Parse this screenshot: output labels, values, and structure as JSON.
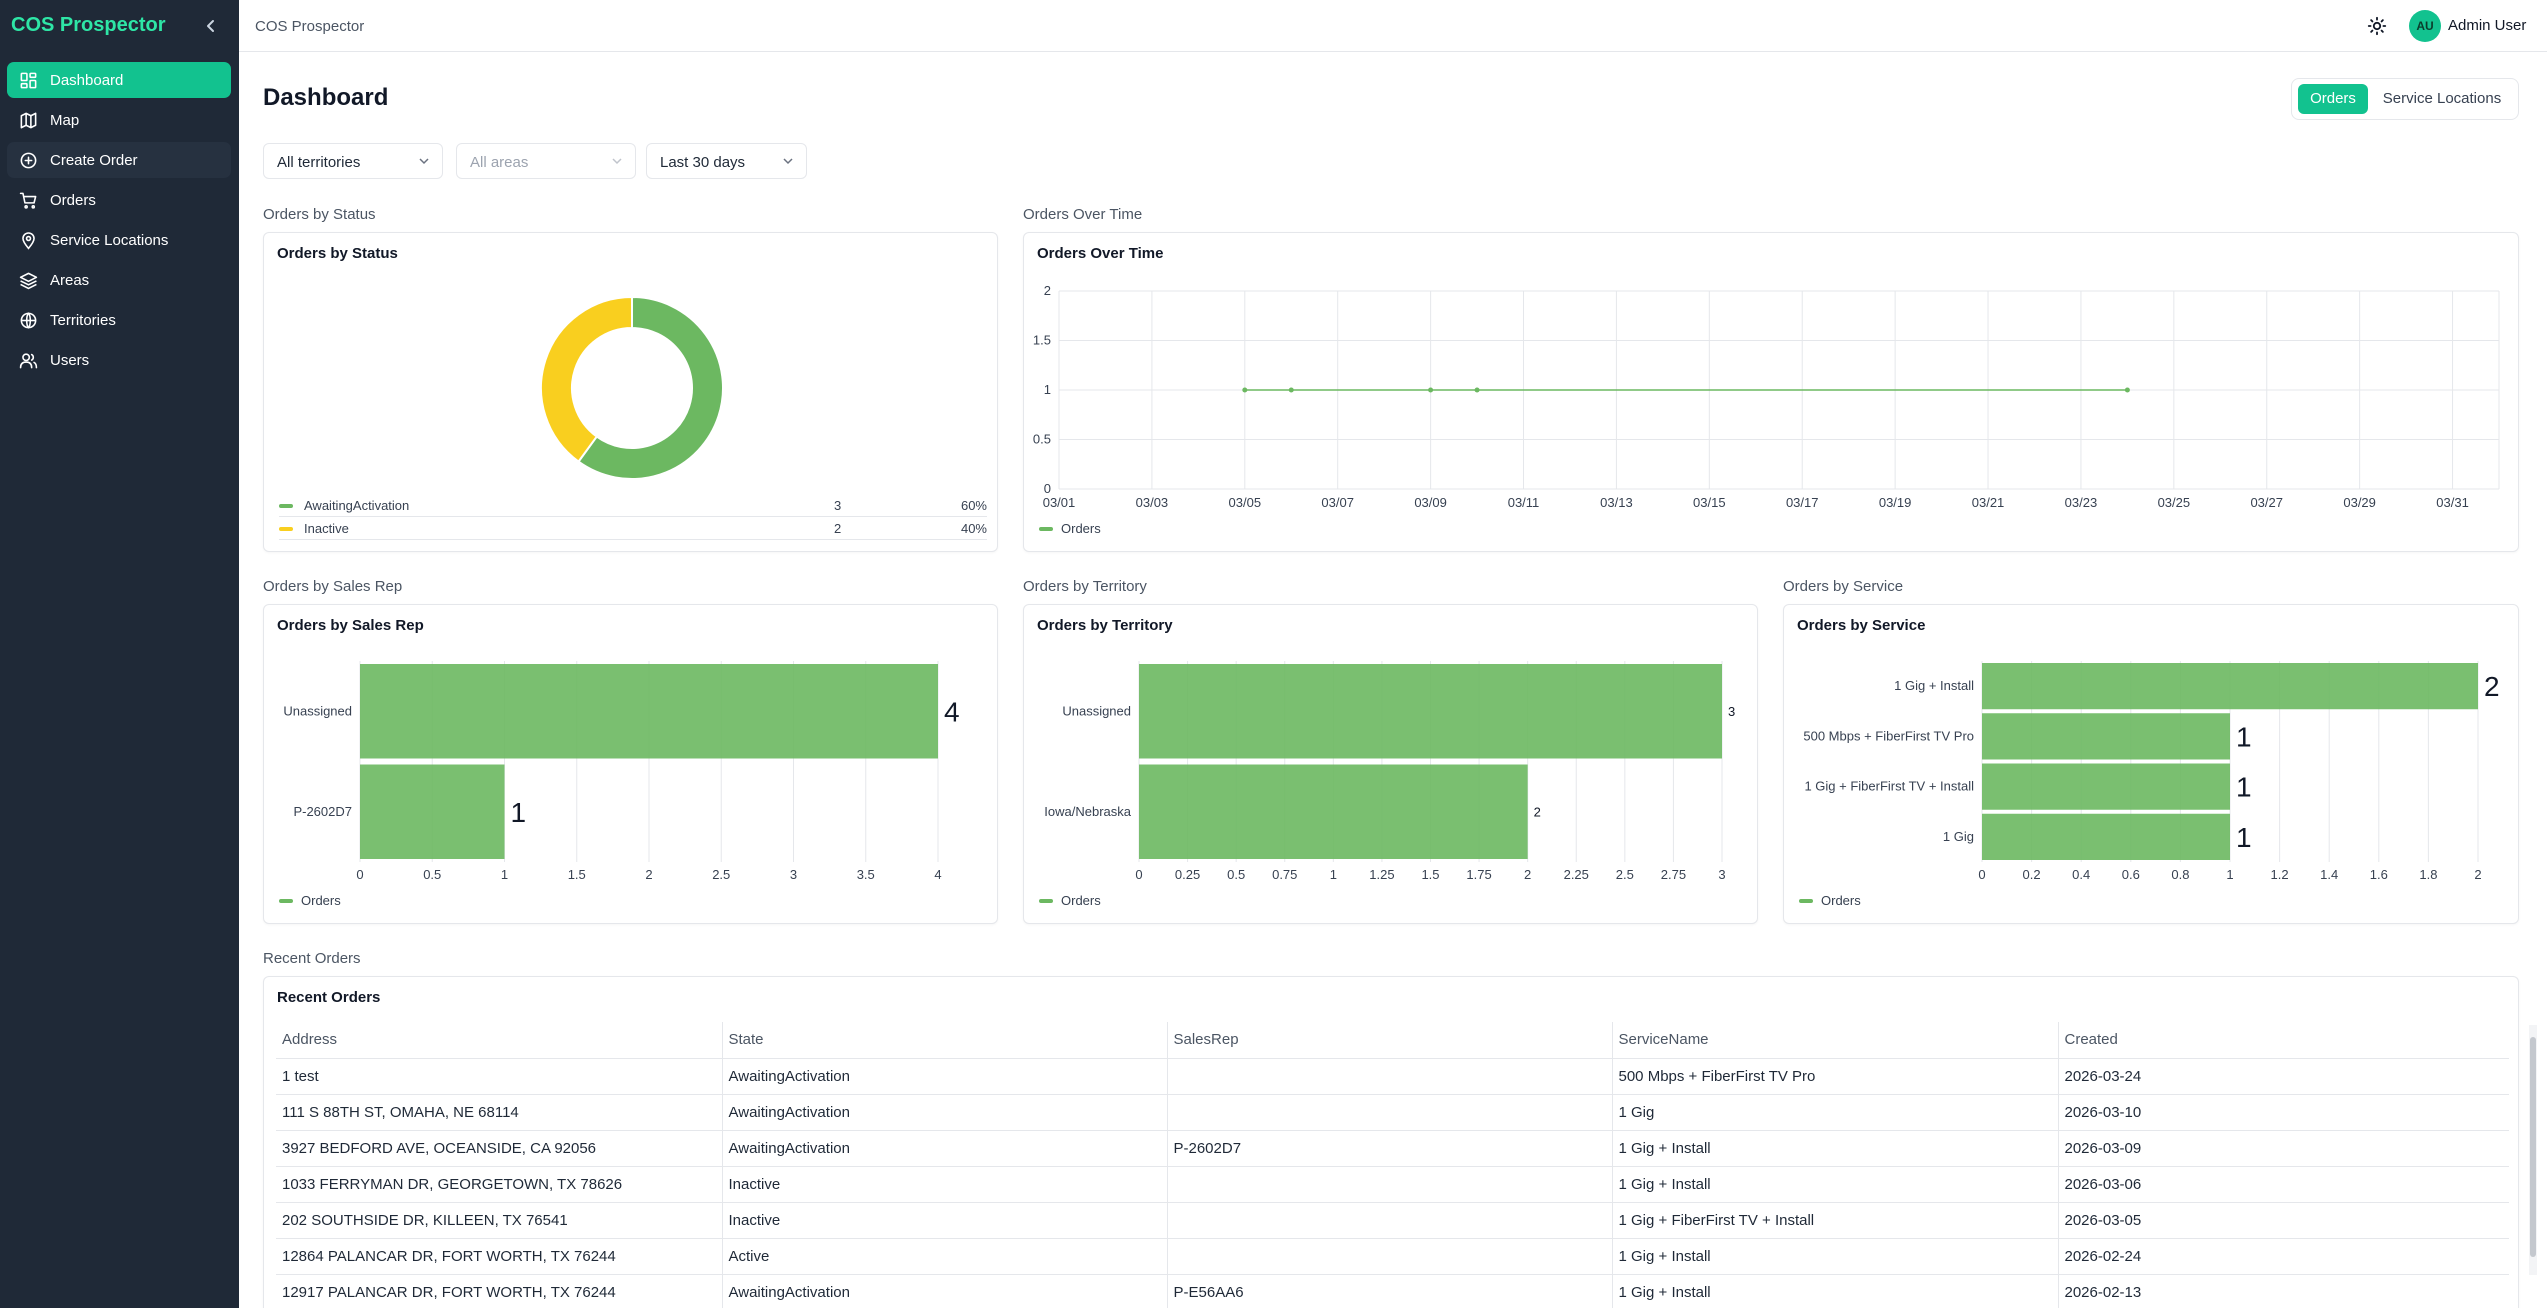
{
  "app": {
    "brand": "COS Prospector",
    "breadcrumb": "COS Prospector"
  },
  "colors": {
    "accent": "#12c28f",
    "sidebar_bg": "#1f2937",
    "green_series": "#6cb861",
    "yellow_series": "#f9cf1f"
  },
  "sidebar": {
    "items": [
      {
        "label": "Dashboard",
        "icon": "dashboard-icon",
        "active": true
      },
      {
        "label": "Map",
        "icon": "map-icon"
      },
      {
        "label": "Create Order",
        "icon": "plus-circle-icon"
      },
      {
        "label": "Orders",
        "icon": "cart-icon"
      },
      {
        "label": "Service Locations",
        "icon": "location-pin-icon"
      },
      {
        "label": "Areas",
        "icon": "layers-icon"
      },
      {
        "label": "Territories",
        "icon": "globe-icon"
      },
      {
        "label": "Users",
        "icon": "users-icon"
      }
    ]
  },
  "header": {
    "user_initials": "AU",
    "user_name": "Admin User",
    "theme_icon": "sun-icon"
  },
  "main": {
    "title": "Dashboard",
    "view_toggle": {
      "orders": "Orders",
      "service_locations": "Service Locations",
      "selected": "Orders"
    },
    "filters": {
      "territory": "All territories",
      "area": "All areas",
      "range": "Last 30 days"
    }
  },
  "sections": {
    "status": "Orders by Status",
    "over_time": "Orders Over Time",
    "sales_rep": "Orders by Sales Rep",
    "territory": "Orders by Territory",
    "service": "Orders by Service",
    "recent": "Recent Orders"
  },
  "chart_data": [
    {
      "id": "status",
      "type": "pie",
      "title": "Orders by Status",
      "slices": [
        {
          "label": "AwaitingActivation",
          "value": 3,
          "percent": "60%",
          "color": "#6cb861"
        },
        {
          "label": "Inactive",
          "value": 2,
          "percent": "40%",
          "color": "#f9cf1f"
        }
      ]
    },
    {
      "id": "over_time",
      "type": "line",
      "title": "Orders Over Time",
      "x_ticks": [
        "03/01",
        "03/03",
        "03/05",
        "03/07",
        "03/09",
        "03/11",
        "03/13",
        "03/15",
        "03/17",
        "03/19",
        "03/21",
        "03/23",
        "03/25",
        "03/27",
        "03/29",
        "03/31"
      ],
      "y_ticks": [
        "0",
        "0.5",
        "1",
        "1.5",
        "2"
      ],
      "ylim": [
        0,
        2
      ],
      "series": [
        {
          "name": "Orders",
          "x": [
            "03/05",
            "03/06",
            "03/09",
            "03/10",
            "03/24"
          ],
          "values": [
            1,
            1,
            1,
            1,
            1
          ]
        }
      ]
    },
    {
      "id": "sales_rep",
      "type": "bar",
      "title": "Orders by Sales Rep",
      "categories": [
        "Unassigned",
        "P-2602D7"
      ],
      "values": [
        4,
        1
      ],
      "value_labels": [
        "4",
        "1"
      ],
      "x_ticks": [
        "0",
        "0.5",
        "1",
        "1.5",
        "2",
        "2.5",
        "3",
        "3.5",
        "4"
      ],
      "xlim": [
        0,
        4
      ],
      "series_name": "Orders"
    },
    {
      "id": "territory",
      "type": "bar",
      "title": "Orders by Territory",
      "categories": [
        "Unassigned",
        "Iowa/Nebraska"
      ],
      "values": [
        3,
        2
      ],
      "value_labels": [
        "3",
        "2"
      ],
      "x_ticks": [
        "0",
        "0.25",
        "0.5",
        "0.75",
        "1",
        "1.25",
        "1.5",
        "1.75",
        "2",
        "2.25",
        "2.5",
        "2.75",
        "3"
      ],
      "xlim": [
        0,
        3
      ],
      "series_name": "Orders"
    },
    {
      "id": "service",
      "type": "bar",
      "title": "Orders by Service",
      "categories": [
        "1 Gig + Install",
        "500 Mbps + FiberFirst TV Pro",
        "1 Gig + FiberFirst TV +  Install",
        "1 Gig"
      ],
      "values": [
        2,
        1,
        1,
        1
      ],
      "value_labels": [
        "2",
        "1",
        "1",
        "1"
      ],
      "x_ticks": [
        "0",
        "0.2",
        "0.4",
        "0.6",
        "0.8",
        "1",
        "1.2",
        "1.4",
        "1.6",
        "1.8",
        "2"
      ],
      "xlim": [
        0,
        2
      ],
      "series_name": "Orders"
    }
  ],
  "recent_orders": {
    "title": "Recent Orders",
    "columns": [
      "Address",
      "State",
      "SalesRep",
      "ServiceName",
      "Created"
    ],
    "rows": [
      [
        "1 test",
        "AwaitingActivation",
        "",
        "500 Mbps + FiberFirst TV Pro",
        "2026-03-24"
      ],
      [
        "111 S 88TH ST, OMAHA, NE 68114",
        "AwaitingActivation",
        "",
        "1 Gig",
        "2026-03-10"
      ],
      [
        "3927 BEDFORD AVE, OCEANSIDE, CA 92056",
        "AwaitingActivation",
        "P-2602D7",
        "1 Gig + Install",
        "2026-03-09"
      ],
      [
        "1033 FERRYMAN DR, GEORGETOWN, TX 78626",
        "Inactive",
        "",
        "1 Gig + Install",
        "2026-03-06"
      ],
      [
        "202 SOUTHSIDE DR, KILLEEN, TX 76541",
        "Inactive",
        "",
        "1 Gig + FiberFirst TV + Install",
        "2026-03-05"
      ],
      [
        "12864 PALANCAR DR, FORT WORTH, TX 76244",
        "Active",
        "",
        "1 Gig + Install",
        "2026-02-24"
      ],
      [
        "12917 PALANCAR DR, FORT WORTH, TX 76244",
        "AwaitingActivation",
        "P-E56AA6",
        "1 Gig + Install",
        "2026-02-13"
      ]
    ]
  }
}
